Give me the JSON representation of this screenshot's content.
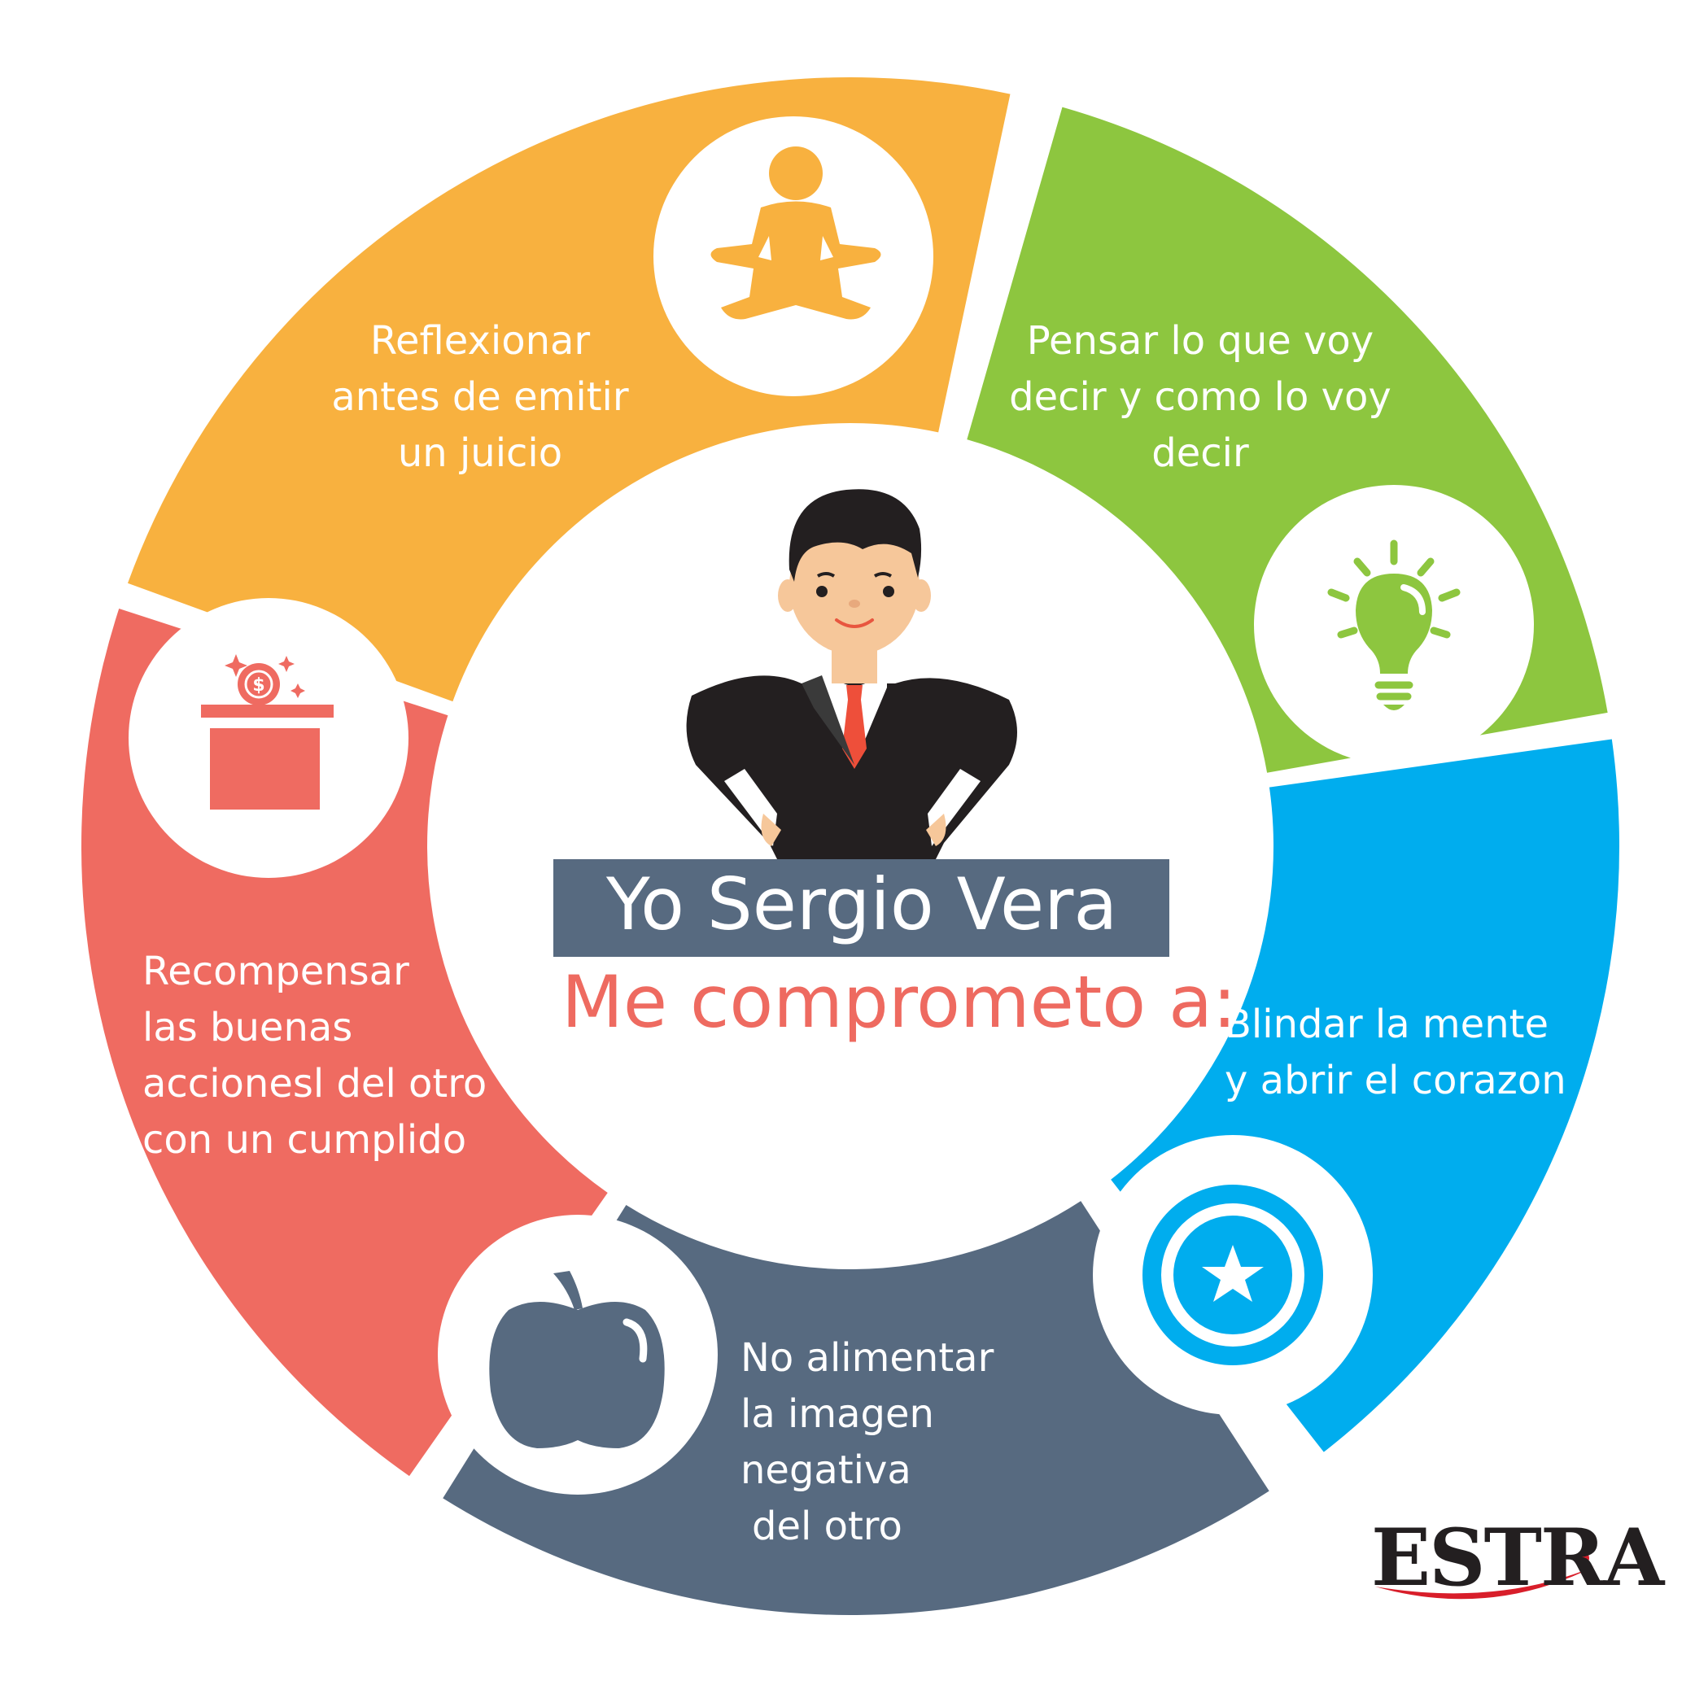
{
  "colors": {
    "orange": "#f8b13f",
    "green": "#8dc63f",
    "blue": "#00adee",
    "slate": "#576a80",
    "coral": "#ef6b61",
    "white": "#ffffff"
  },
  "header": {
    "name": "Yo Sergio Vera",
    "pledge": "Me comprometo a:"
  },
  "segments": [
    {
      "id": "orange",
      "icon": "meditation-icon",
      "lines": [
        "Reflexionar",
        "antes de emitir",
        "un juicio"
      ]
    },
    {
      "id": "green",
      "icon": "lightbulb-icon",
      "lines": [
        "Pensar lo que voy",
        "decir y como lo voy",
        "decir"
      ]
    },
    {
      "id": "blue",
      "icon": "star-shield-icon",
      "lines": [
        "Blindar la mente",
        "y abrir el corazon"
      ]
    },
    {
      "id": "slate",
      "icon": "apple-icon",
      "lines": [
        "No alimentar",
        "la imagen",
        "negativa",
        "del otro"
      ]
    },
    {
      "id": "coral",
      "icon": "coin-box-icon",
      "lines": [
        "Recompensar",
        "las buenas",
        "accionesl del otro",
        "con un cumplido"
      ]
    }
  ],
  "logo": {
    "text": "ESTRA"
  }
}
